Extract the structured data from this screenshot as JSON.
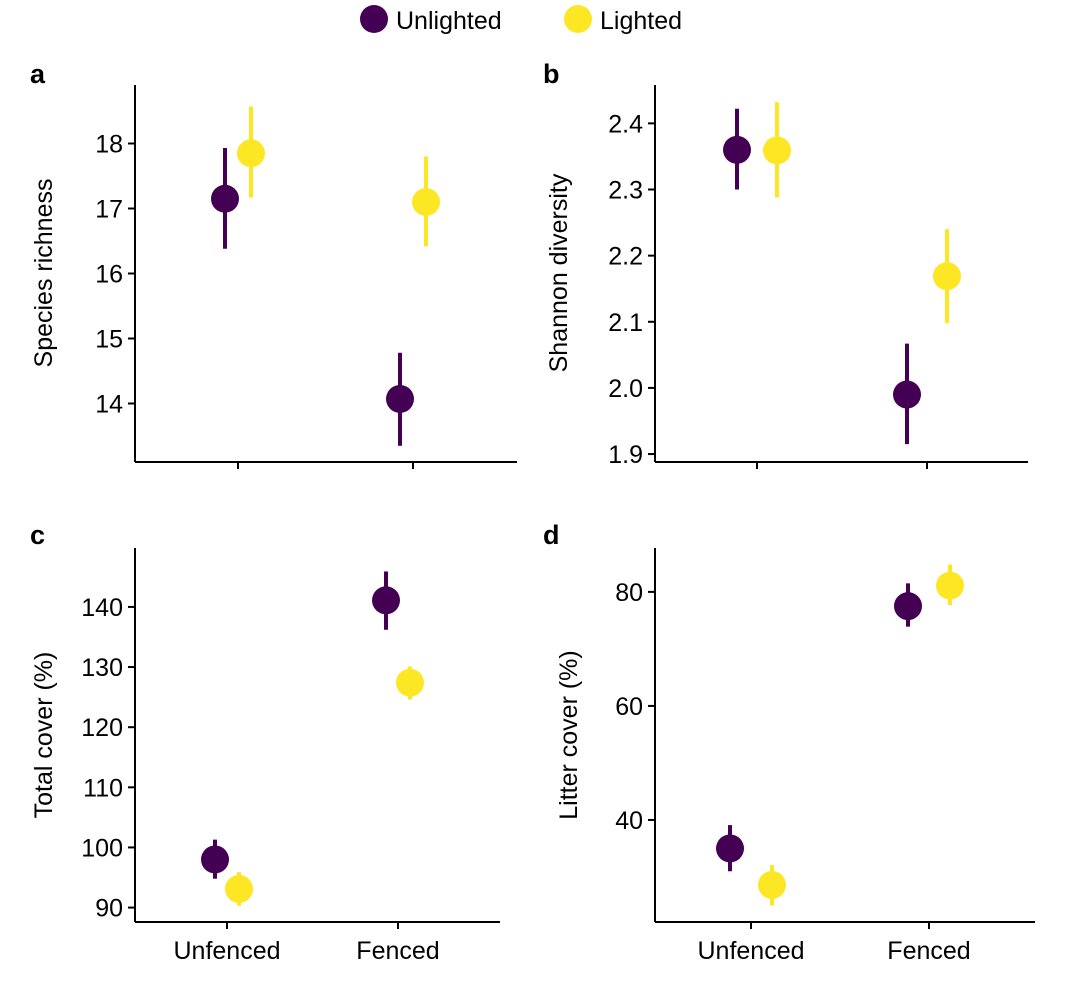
{
  "legend": {
    "placement": "top-center",
    "items": [
      {
        "label": "Unlighted",
        "color": "#440154"
      },
      {
        "label": "Lighted",
        "color": "#FDE725"
      }
    ]
  },
  "colors": {
    "Unlighted": "#440154",
    "Lighted": "#FDE725",
    "axis": "#000000"
  },
  "chart_data": [
    {
      "panel": "a",
      "type": "scatter",
      "ylabel": "Species richness",
      "categories": [
        "Unfenced",
        "Fenced"
      ],
      "show_category_labels": false,
      "ylim": [
        13.1,
        18.9
      ],
      "yticks": [
        14,
        15,
        16,
        17,
        18
      ],
      "grid": false,
      "series": [
        {
          "name": "Unlighted",
          "values": [
            17.15,
            14.07
          ],
          "lower": [
            16.38,
            13.35
          ],
          "upper": [
            17.93,
            14.78
          ]
        },
        {
          "name": "Lighted",
          "values": [
            17.85,
            17.1
          ],
          "lower": [
            17.17,
            16.42
          ],
          "upper": [
            18.57,
            17.8
          ]
        }
      ]
    },
    {
      "panel": "b",
      "type": "scatter",
      "ylabel": "Shannon diversity",
      "categories": [
        "Unfenced",
        "Fenced"
      ],
      "show_category_labels": false,
      "ylim": [
        1.888,
        2.458
      ],
      "yticks": [
        1.9,
        2.0,
        2.1,
        2.2,
        2.3,
        2.4
      ],
      "ytick_labels": [
        "1.9",
        "2.0",
        "2.1",
        "2.2",
        "2.3",
        "2.4"
      ],
      "grid": false,
      "series": [
        {
          "name": "Unlighted",
          "values": [
            2.36,
            1.99
          ],
          "lower": [
            2.3,
            1.915
          ],
          "upper": [
            2.422,
            2.067
          ]
        },
        {
          "name": "Lighted",
          "values": [
            2.359,
            2.169
          ],
          "lower": [
            2.288,
            2.098
          ],
          "upper": [
            2.432,
            2.24
          ]
        }
      ]
    },
    {
      "panel": "c",
      "type": "scatter",
      "ylabel": "Total cover (%)",
      "categories": [
        "Unfenced",
        "Fenced"
      ],
      "show_category_labels": true,
      "ylim": [
        87.6,
        149.8
      ],
      "yticks": [
        90,
        100,
        110,
        120,
        130,
        140
      ],
      "grid": false,
      "series": [
        {
          "name": "Unlighted",
          "values": [
            98,
            141.1
          ],
          "lower": [
            94.8,
            136.2
          ],
          "upper": [
            101.3,
            145.9
          ]
        },
        {
          "name": "Lighted",
          "values": [
            93.1,
            127.4
          ],
          "lower": [
            90.3,
            124.6
          ],
          "upper": [
            95.9,
            130.1
          ]
        }
      ]
    },
    {
      "panel": "d",
      "type": "scatter",
      "ylabel": "Litter cover (%)",
      "categories": [
        "Unfenced",
        "Fenced"
      ],
      "show_category_labels": true,
      "ylim": [
        22.1,
        87.7
      ],
      "yticks": [
        40,
        60,
        80
      ],
      "grid": false,
      "series": [
        {
          "name": "Unlighted",
          "values": [
            35,
            77.5
          ],
          "lower": [
            31,
            73.9
          ],
          "upper": [
            39.1,
            81.5
          ]
        },
        {
          "name": "Lighted",
          "values": [
            28.6,
            81.1
          ],
          "lower": [
            25,
            77.7
          ],
          "upper": [
            32.1,
            84.8
          ]
        }
      ]
    }
  ]
}
